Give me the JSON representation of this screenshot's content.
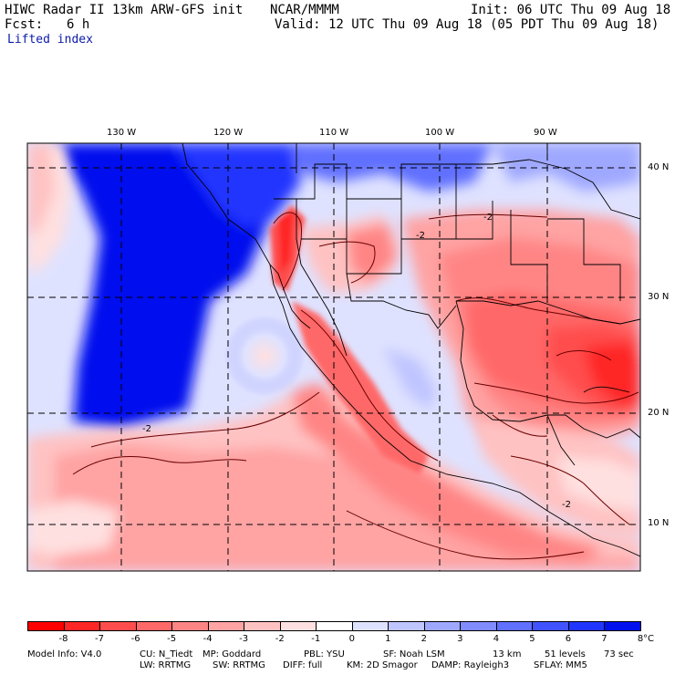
{
  "header": {
    "title": "HIWC Radar II 13km ARW-GFS init",
    "org": "NCAR/MMMM",
    "init": "Init: 06 UTC Thu 09 Aug 18",
    "fcst_label": "Fcst:",
    "fcst_value": "6 h",
    "valid": "Valid: 12 UTC Thu 09 Aug 18 (05 PDT Thu 09 Aug 18)",
    "field": "Lifted index"
  },
  "map": {
    "lon_labels": [
      "130 W",
      "120 W",
      "110 W",
      "100 W",
      "90 W"
    ],
    "lat_labels": [
      "40 N",
      "30 N",
      "20 N",
      "10 N"
    ],
    "contour_label": "-2"
  },
  "colorbar": {
    "colors": [
      "#ff0000",
      "#ff2626",
      "#ff4d4d",
      "#ff6868",
      "#ff8585",
      "#ffa3a3",
      "#ffc2c2",
      "#ffe0e0",
      "#ffffff",
      "#dfe2ff",
      "#bfc5ff",
      "#9fa8ff",
      "#808cff",
      "#6070ff",
      "#4053ff",
      "#2036ff",
      "#0011ee"
    ],
    "labels": [
      "-8",
      "-7",
      "-6",
      "-5",
      "-4",
      "-3",
      "-2",
      "-1",
      "0",
      "1",
      "2",
      "3",
      "4",
      "5",
      "6",
      "7",
      "8"
    ],
    "unit": "°C"
  },
  "model_info": {
    "line1": [
      "Model Info: V4.0",
      "CU: N_Tiedt",
      "MP: Goddard",
      "PBL: YSU",
      "SF: Noah LSM",
      "13 km",
      "51 levels",
      "73 sec"
    ],
    "line2": [
      "LW: RRTMG",
      "SW: RRTMG",
      "DIFF: full",
      "KM: 2D Smagor",
      "DAMP: Rayleigh3",
      "SFLAY: MM5"
    ]
  },
  "colors": {
    "deep_blue": "#0011ee",
    "strong_red": "#ff2626",
    "neutral": "#ffffff"
  }
}
